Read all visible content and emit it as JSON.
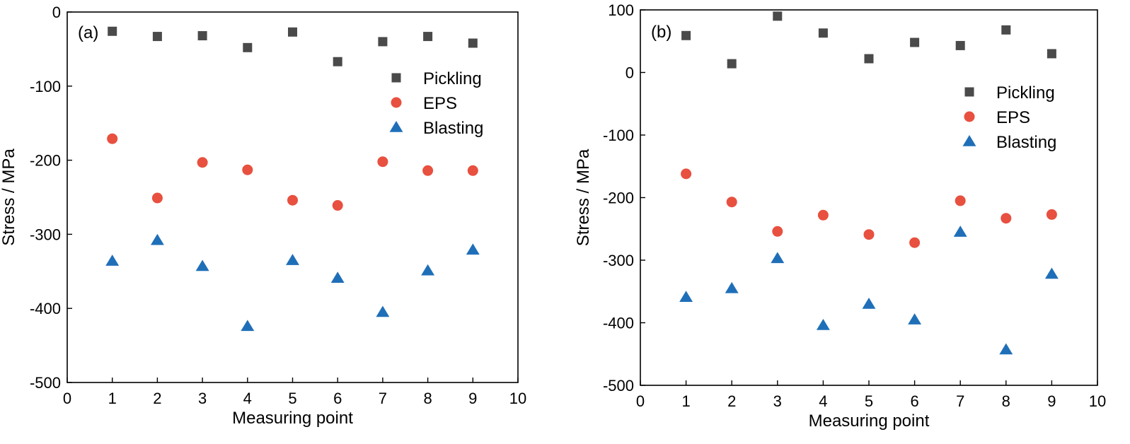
{
  "chart_data": [
    {
      "type": "scatter",
      "panel_label": "(a)",
      "xlabel": "Measuring point",
      "ylabel": "Stress / MPa",
      "xlim": [
        0,
        10
      ],
      "ylim": [
        -500,
        0
      ],
      "xticks": [
        0,
        1,
        2,
        3,
        4,
        5,
        6,
        7,
        8,
        9,
        10
      ],
      "yticks": [
        0,
        -100,
        -200,
        -300,
        -400,
        -500
      ],
      "legend_position": "upper-right",
      "x": [
        1,
        2,
        3,
        4,
        5,
        6,
        7,
        8,
        9
      ],
      "series": [
        {
          "name": "Pickling",
          "marker": "square",
          "color": "#4a4a4a",
          "values": [
            -26,
            -33,
            -32,
            -48,
            -27,
            -67,
            -40,
            -33,
            -42
          ]
        },
        {
          "name": "EPS",
          "marker": "circle",
          "color": "#e8503f",
          "values": [
            -171,
            -251,
            -203,
            -213,
            -254,
            -261,
            -202,
            -214,
            -214
          ]
        },
        {
          "name": "Blasting",
          "marker": "triangle",
          "color": "#1f6fb8",
          "values": [
            -336,
            -308,
            -343,
            -424,
            -335,
            -359,
            -405,
            -349,
            -321
          ]
        }
      ]
    },
    {
      "type": "scatter",
      "panel_label": "(b)",
      "xlabel": "Measuring point",
      "ylabel": "Stress / MPa",
      "xlim": [
        0,
        10
      ],
      "ylim": [
        -500,
        100
      ],
      "xticks": [
        0,
        1,
        2,
        3,
        4,
        5,
        6,
        7,
        8,
        9,
        10
      ],
      "yticks": [
        100,
        0,
        -100,
        -200,
        -300,
        -400,
        -500
      ],
      "legend_position": "upper-right",
      "x": [
        1,
        2,
        3,
        4,
        5,
        6,
        7,
        8,
        9
      ],
      "series": [
        {
          "name": "Pickling",
          "marker": "square",
          "color": "#4a4a4a",
          "values": [
            59,
            14,
            90,
            63,
            22,
            48,
            43,
            68,
            30
          ]
        },
        {
          "name": "EPS",
          "marker": "circle",
          "color": "#e8503f",
          "values": [
            -162,
            -207,
            -254,
            -228,
            -259,
            -272,
            -205,
            -233,
            -227
          ]
        },
        {
          "name": "Blasting",
          "marker": "triangle",
          "color": "#1f6fb8",
          "values": [
            -359,
            -345,
            -297,
            -404,
            -370,
            -395,
            -255,
            -443,
            -322
          ]
        }
      ]
    }
  ]
}
